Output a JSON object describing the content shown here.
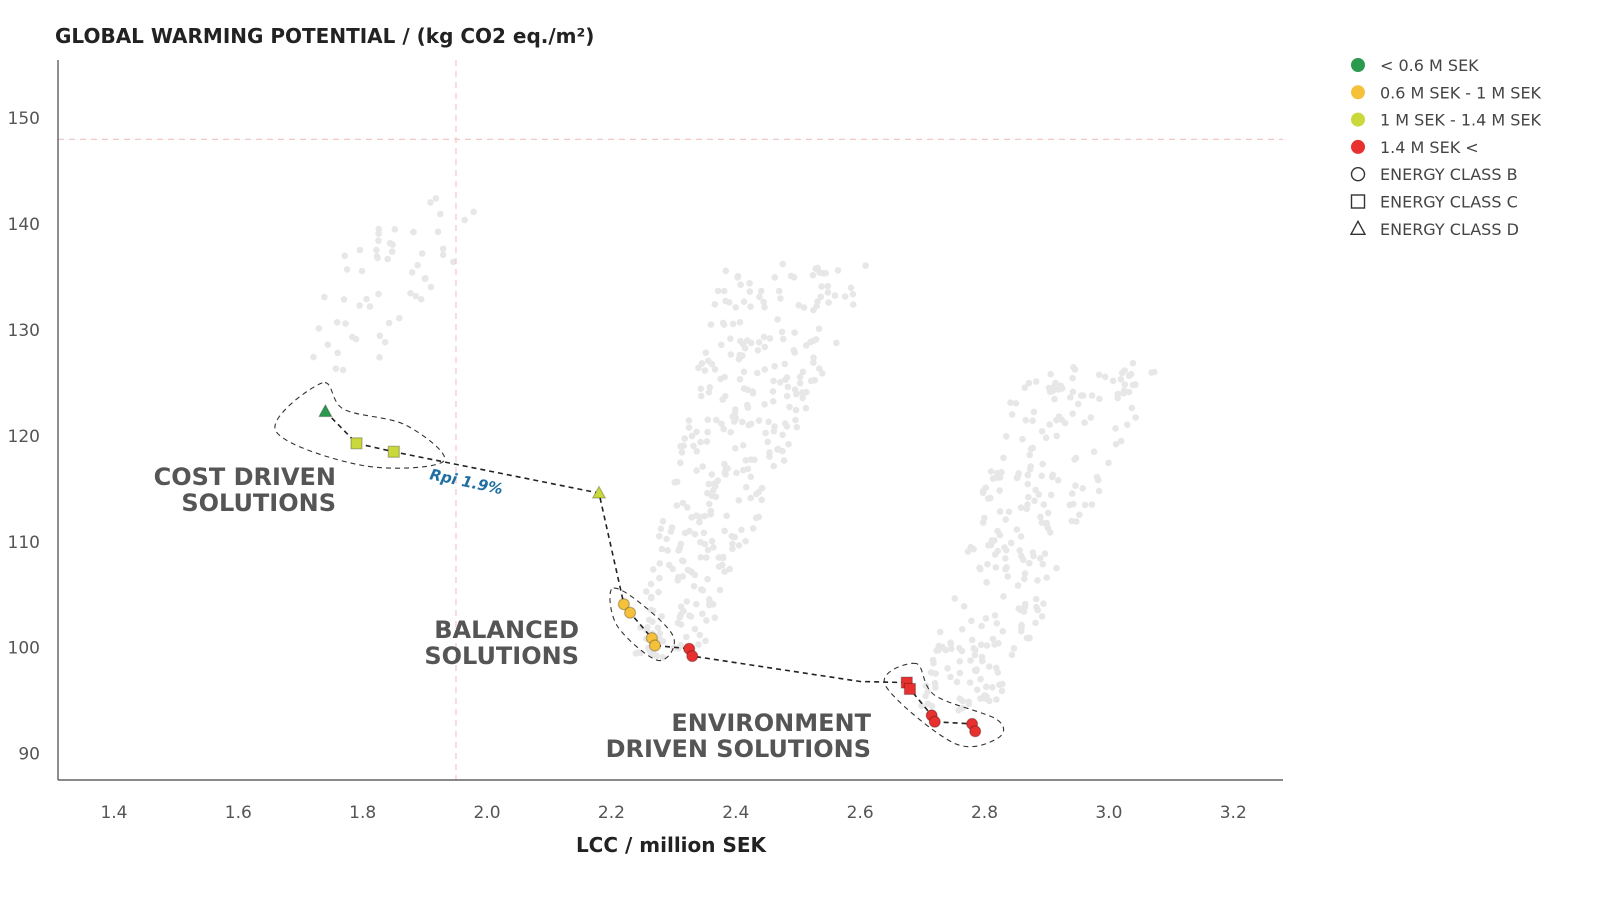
{
  "chart_data": {
    "type": "scatter",
    "title": "GLOBAL WARMING POTENTIAL / (kg CO2 eq./m²)",
    "xlabel": "LCC / million SEK",
    "ylabel": "",
    "xlim": [
      1.31,
      3.28
    ],
    "ylim": [
      87.5,
      155.5
    ],
    "x_ticks": [
      "1.4",
      "1.6",
      "1.8",
      "2.0",
      "2.2",
      "2.4",
      "2.6",
      "2.8",
      "3.0",
      "3.2"
    ],
    "y_ticks": [
      "90",
      "100",
      "110",
      "120",
      "130",
      "140",
      "150"
    ],
    "reference_lines": {
      "x": 1.95,
      "y": 148.0
    },
    "grid": false,
    "legend_position": "top-right",
    "colors": {
      "lt_0_6": "#2b9a4f",
      "0_6_to_1": "#f5c13a",
      "1_to_1_4": "#c9d83a",
      "gt_1_4": "#e8302f",
      "background_points": "#e7e7e7",
      "rpi_label": "#1f6fa3"
    },
    "legend": [
      {
        "label": "< 0.6 M SEK",
        "symbol": "dot",
        "color": "#2b9a4f"
      },
      {
        "label": "0.6 M SEK - 1 M SEK",
        "symbol": "dot",
        "color": "#f5c13a"
      },
      {
        "label": "1 M SEK - 1.4 M SEK",
        "symbol": "dot",
        "color": "#c9d83a"
      },
      {
        "label": "1.4 M SEK <",
        "symbol": "dot",
        "color": "#e8302f"
      },
      {
        "label": "ENERGY CLASS B",
        "symbol": "circle"
      },
      {
        "label": "ENERGY CLASS C",
        "symbol": "square"
      },
      {
        "label": "ENERGY CLASS D",
        "symbol": "triangle"
      }
    ],
    "pareto_points": [
      {
        "x": 1.74,
        "y": 122.3,
        "cost_class": "lt_0_6",
        "energy_class": "D"
      },
      {
        "x": 1.79,
        "y": 119.3,
        "cost_class": "1_to_1_4",
        "energy_class": "C"
      },
      {
        "x": 1.85,
        "y": 118.5,
        "cost_class": "1_to_1_4",
        "energy_class": "C"
      },
      {
        "x": 2.18,
        "y": 114.6,
        "cost_class": "1_to_1_4",
        "energy_class": "D"
      },
      {
        "x": 2.22,
        "y": 104.1,
        "cost_class": "0_6_to_1",
        "energy_class": "B"
      },
      {
        "x": 2.23,
        "y": 103.3,
        "cost_class": "0_6_to_1",
        "energy_class": "B"
      },
      {
        "x": 2.265,
        "y": 100.9,
        "cost_class": "0_6_to_1",
        "energy_class": "B"
      },
      {
        "x": 2.27,
        "y": 100.2,
        "cost_class": "0_6_to_1",
        "energy_class": "B"
      },
      {
        "x": 2.325,
        "y": 99.9,
        "cost_class": "gt_1_4",
        "energy_class": "B"
      },
      {
        "x": 2.33,
        "y": 99.2,
        "cost_class": "gt_1_4",
        "energy_class": "B"
      },
      {
        "x": 2.675,
        "y": 96.7,
        "cost_class": "gt_1_4",
        "energy_class": "C"
      },
      {
        "x": 2.68,
        "y": 96.1,
        "cost_class": "gt_1_4",
        "energy_class": "C"
      },
      {
        "x": 2.715,
        "y": 93.6,
        "cost_class": "gt_1_4",
        "energy_class": "B"
      },
      {
        "x": 2.72,
        "y": 93.0,
        "cost_class": "gt_1_4",
        "energy_class": "B"
      },
      {
        "x": 2.78,
        "y": 92.8,
        "cost_class": "gt_1_4",
        "energy_class": "B"
      },
      {
        "x": 2.785,
        "y": 92.1,
        "cost_class": "gt_1_4",
        "energy_class": "B"
      }
    ],
    "pareto_front_line": [
      [
        1.74,
        122.3
      ],
      [
        1.79,
        119.3
      ],
      [
        1.85,
        118.5
      ],
      [
        2.18,
        114.6
      ],
      [
        2.22,
        104.1
      ],
      [
        2.23,
        103.3
      ],
      [
        2.265,
        100.9
      ],
      [
        2.27,
        100.2
      ],
      [
        2.325,
        99.9
      ],
      [
        2.33,
        99.2
      ],
      [
        2.6,
        96.8
      ],
      [
        2.675,
        96.7
      ],
      [
        2.68,
        96.1
      ],
      [
        2.715,
        93.6
      ],
      [
        2.72,
        93.0
      ],
      [
        2.78,
        92.8
      ],
      [
        2.785,
        92.1
      ]
    ],
    "groups": [
      {
        "name": "cost",
        "lines": [
          "COST DRIVEN",
          "SOLUTIONS"
        ],
        "outline": [
          [
            1.735,
            125.0
          ],
          [
            1.66,
            120.5
          ],
          [
            1.8,
            117.2
          ],
          [
            1.93,
            117.6
          ],
          [
            1.87,
            121.0
          ],
          [
            1.77,
            122.5
          ]
        ]
      },
      {
        "name": "balanced",
        "lines": [
          "BALANCED",
          "SOLUTIONS"
        ],
        "outline": [
          [
            2.2,
            105.5
          ],
          [
            2.21,
            102.0
          ],
          [
            2.275,
            98.8
          ],
          [
            2.3,
            101.0
          ],
          [
            2.24,
            104.5
          ]
        ]
      },
      {
        "name": "environment",
        "lines": [
          "ENVIRONMENT",
          "DRIVEN SOLUTIONS"
        ],
        "outline": [
          [
            2.69,
            98.5
          ],
          [
            2.64,
            96.5
          ],
          [
            2.75,
            91.0
          ],
          [
            2.82,
            91.4
          ],
          [
            2.82,
            93.2
          ],
          [
            2.72,
            95.5
          ]
        ]
      }
    ],
    "rpi_annotation": {
      "text": "Rpi 1.9%",
      "x": 1.965,
      "y": 115.2
    },
    "background_clusters": [
      {
        "y0": 126.0,
        "y1": 142.5,
        "xlo0": 1.67,
        "xhi0": 1.82,
        "xlo1": 1.82,
        "xhi1": 2.02,
        "n": 55
      },
      {
        "y0": 99.0,
        "y1": 136.5,
        "xlo0": 2.23,
        "xhi0": 2.34,
        "xlo1": 2.38,
        "xhi1": 2.62,
        "n": 340
      },
      {
        "y0": 94.0,
        "y1": 127.0,
        "xlo0": 2.69,
        "xhi0": 2.82,
        "xlo1": 2.86,
        "xhi1": 3.09,
        "n": 270
      }
    ]
  }
}
